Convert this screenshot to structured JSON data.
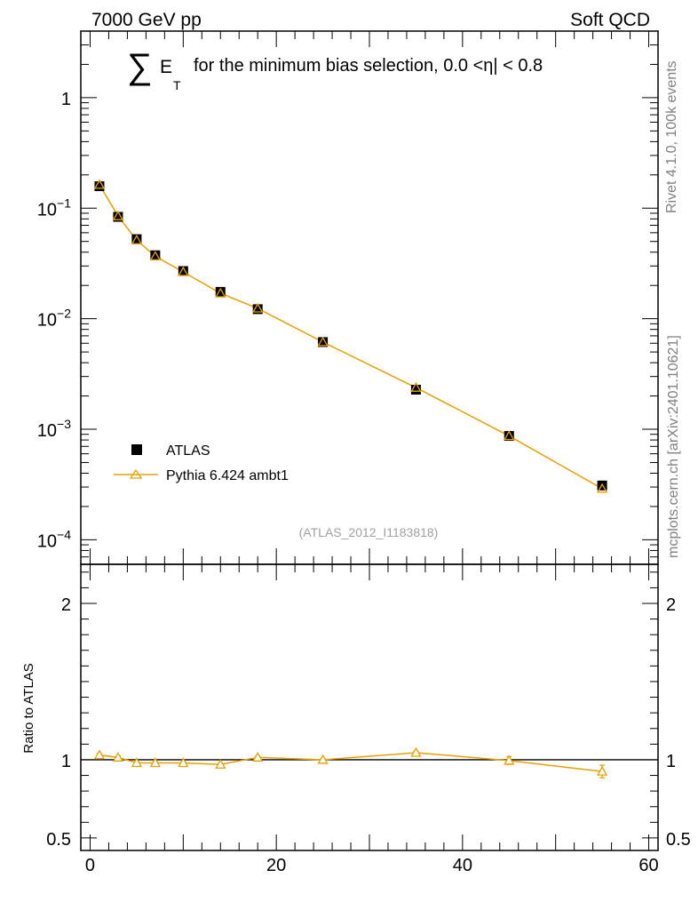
{
  "header": {
    "left": "7000 GeV pp",
    "right": "Soft QCD"
  },
  "side_labels": {
    "rivet": "Rivet 4.1.0,  100k events",
    "mcplots": "mcplots.cern.ch [arXiv:2401.10621]"
  },
  "colors": {
    "data": "#000000",
    "mc": "#e8a000",
    "watermark": "#a0a0a0"
  },
  "chart_data": [
    {
      "type": "scatter",
      "panel": "main",
      "title": {
        "symbol": "∑",
        "quantity": "E",
        "subscript": "T",
        "rest": "for the minimum bias selection, 0.0 <η| < 0.8"
      },
      "y_scale": "log",
      "ylim": [
        6e-05,
        4
      ],
      "y_tick_labels": [
        {
          "value": 1,
          "mantissa": "1",
          "exponent": ""
        },
        {
          "value": 0.1,
          "mantissa": "10",
          "exponent": "−1"
        },
        {
          "value": 0.01,
          "mantissa": "10",
          "exponent": "−2"
        },
        {
          "value": 0.001,
          "mantissa": "10",
          "exponent": "−3"
        },
        {
          "value": 0.0001,
          "mantissa": "10",
          "exponent": "−4"
        }
      ],
      "xlim": [
        -1,
        61
      ],
      "watermark": "(ATLAS_2012_I1183818)",
      "legend_position": "lower-left",
      "series": [
        {
          "name": "ATLAS",
          "marker": "square",
          "x": [
            1,
            3,
            5,
            7,
            10,
            14,
            18,
            25,
            35,
            45,
            55
          ],
          "y": [
            0.158,
            0.0835,
            0.0525,
            0.0375,
            0.027,
            0.0175,
            0.0122,
            0.00615,
            0.00228,
            0.00087,
            0.00031
          ]
        },
        {
          "name": "Pythia 6.424 ambt1",
          "marker": "triangle",
          "x": [
            1,
            3,
            5,
            7,
            10,
            14,
            18,
            25,
            35,
            45,
            55
          ],
          "y": [
            0.163,
            0.0848,
            0.0514,
            0.0367,
            0.0265,
            0.017,
            0.0124,
            0.00615,
            0.00238,
            0.00087,
            0.00029
          ]
        }
      ]
    },
    {
      "type": "line",
      "panel": "ratio",
      "ylabel": "Ratio to ATLAS",
      "ylim": [
        0.42,
        2.25
      ],
      "y_ticks": [
        0.5,
        1,
        2
      ],
      "y_tick_labels": [
        "0.5",
        "1",
        "2"
      ],
      "xlim": [
        -1,
        61
      ],
      "x_ticks": [
        0,
        20,
        40,
        60
      ],
      "x_tick_labels": [
        "0",
        "20",
        "40",
        "60"
      ],
      "reference": 1,
      "series": [
        {
          "name": "Pythia 6.424 ambt1",
          "x": [
            1,
            3,
            5,
            7,
            10,
            14,
            18,
            25,
            35,
            45,
            55
          ],
          "y": [
            1.03,
            1.015,
            0.98,
            0.98,
            0.98,
            0.97,
            1.015,
            1.0,
            1.045,
            0.995,
            0.925
          ],
          "err": [
            0.008,
            0.008,
            0.008,
            0.008,
            0.008,
            0.008,
            0.008,
            0.008,
            0.01,
            0.025,
            0.04
          ]
        }
      ]
    }
  ]
}
